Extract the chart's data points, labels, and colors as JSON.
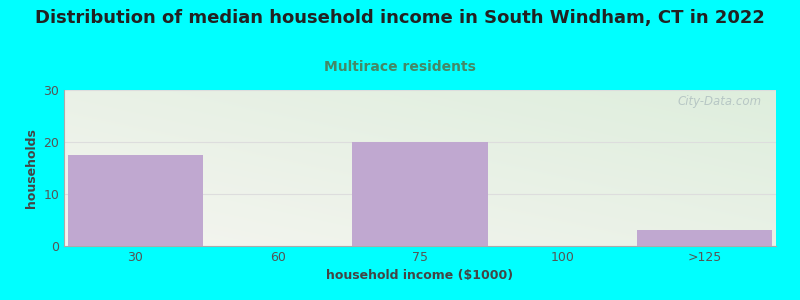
{
  "title": "Distribution of median household income in South Windham, CT in 2022",
  "subtitle": "Multirace residents",
  "xlabel": "household income ($1000)",
  "ylabel": "households",
  "bg_color": "#00FFFF",
  "bar_color": "#C0A8D0",
  "categories": [
    "30",
    "60",
    "75",
    "100",
    ">125"
  ],
  "values": [
    17.5,
    0,
    20,
    0,
    3
  ],
  "ylim": [
    0,
    30
  ],
  "yticks": [
    0,
    10,
    20,
    30
  ],
  "title_fontsize": 13,
  "subtitle_fontsize": 10,
  "axis_label_fontsize": 9,
  "tick_fontsize": 9,
  "plot_bg_topleft": "#e8f0e0",
  "plot_bg_topright": "#f0f0ee",
  "plot_bg_bottomleft": "#ddeedd",
  "watermark": "City-Data.com",
  "watermark_color": "#b0c0c0",
  "title_color": "#222222",
  "subtitle_color": "#448866",
  "tick_color": "#555555",
  "label_color": "#444444",
  "grid_color": "#dddddd",
  "spine_color": "#aaaaaa"
}
